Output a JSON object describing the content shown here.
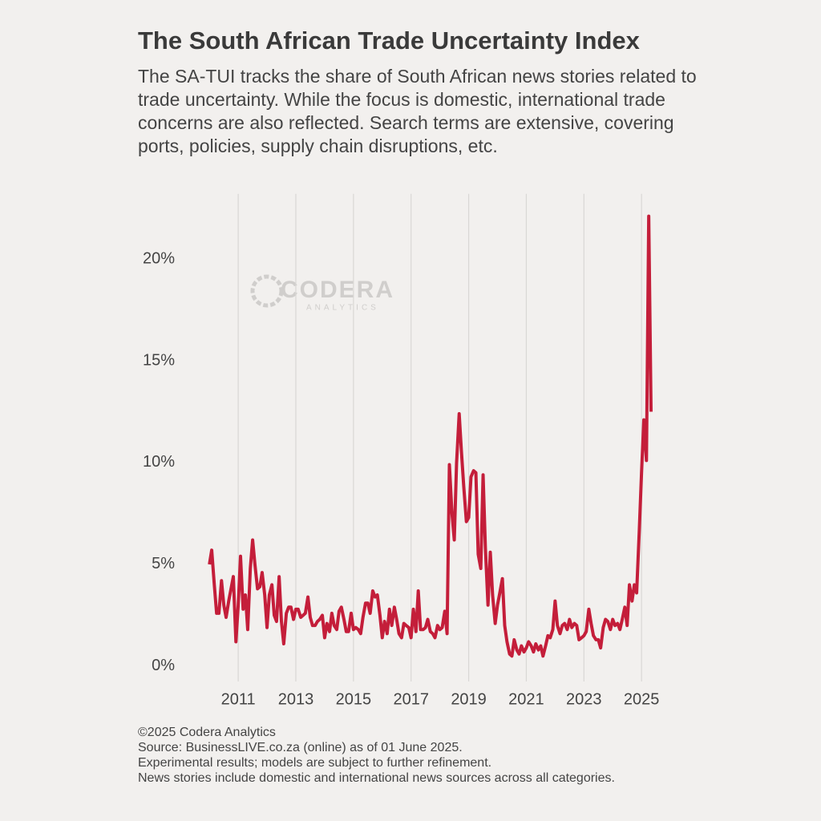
{
  "chart_data": {
    "type": "line",
    "title": "The South African Trade Uncertainty Index",
    "subtitle": [
      "The SA-TUI tracks the share of South African news stories related to",
      "trade uncertainty. While the focus is domestic, international trade",
      "concerns are also reflected. Search terms are extensive, covering",
      "ports, policies, supply chain disruptions, etc."
    ],
    "watermark": {
      "name": "CODERA",
      "sub": "ANALYTICS"
    },
    "footer": [
      "©2025 Codera Analytics",
      "Source: BusinessLIVE.co.za (online) as of 01 June 2025.",
      "Experimental results; models are subject to further refinement.",
      "News stories include domestic and international news sources across all categories."
    ],
    "x": [
      2010.0,
      2010.08,
      2010.17,
      2010.25,
      2010.33,
      2010.42,
      2010.5,
      2010.58,
      2010.67,
      2010.75,
      2010.83,
      2010.92,
      2011.0,
      2011.08,
      2011.17,
      2011.25,
      2011.33,
      2011.42,
      2011.5,
      2011.58,
      2011.67,
      2011.75,
      2011.83,
      2011.92,
      2012.0,
      2012.08,
      2012.17,
      2012.25,
      2012.33,
      2012.42,
      2012.5,
      2012.58,
      2012.67,
      2012.75,
      2012.83,
      2012.92,
      2013.0,
      2013.08,
      2013.17,
      2013.25,
      2013.33,
      2013.42,
      2013.5,
      2013.58,
      2013.67,
      2013.75,
      2013.83,
      2013.92,
      2014.0,
      2014.08,
      2014.17,
      2014.25,
      2014.33,
      2014.42,
      2014.5,
      2014.58,
      2014.67,
      2014.75,
      2014.83,
      2014.92,
      2015.0,
      2015.08,
      2015.17,
      2015.25,
      2015.33,
      2015.42,
      2015.5,
      2015.58,
      2015.67,
      2015.75,
      2015.83,
      2015.92,
      2016.0,
      2016.08,
      2016.17,
      2016.25,
      2016.33,
      2016.42,
      2016.5,
      2016.58,
      2016.67,
      2016.75,
      2016.83,
      2016.92,
      2017.0,
      2017.08,
      2017.17,
      2017.25,
      2017.33,
      2017.42,
      2017.5,
      2017.58,
      2017.67,
      2017.75,
      2017.83,
      2017.92,
      2018.0,
      2018.08,
      2018.17,
      2018.25,
      2018.33,
      2018.42,
      2018.5,
      2018.58,
      2018.67,
      2018.75,
      2018.83,
      2018.92,
      2019.0,
      2019.08,
      2019.17,
      2019.25,
      2019.33,
      2019.42,
      2019.5,
      2019.58,
      2019.67,
      2019.75,
      2019.83,
      2019.92,
      2020.0,
      2020.08,
      2020.17,
      2020.25,
      2020.33,
      2020.42,
      2020.5,
      2020.58,
      2020.67,
      2020.75,
      2020.83,
      2020.92,
      2021.0,
      2021.08,
      2021.17,
      2021.25,
      2021.33,
      2021.42,
      2021.5,
      2021.58,
      2021.67,
      2021.75,
      2021.83,
      2021.92,
      2022.0,
      2022.08,
      2022.17,
      2022.25,
      2022.33,
      2022.42,
      2022.5,
      2022.58,
      2022.67,
      2022.75,
      2022.83,
      2022.92,
      2023.0,
      2023.08,
      2023.17,
      2023.25,
      2023.33,
      2023.42,
      2023.5,
      2023.58,
      2023.67,
      2023.75,
      2023.83,
      2023.92,
      2024.0,
      2024.08,
      2024.17,
      2024.25,
      2024.33,
      2024.42,
      2024.5,
      2024.58,
      2024.67,
      2024.75,
      2024.83,
      2024.92,
      2025.0,
      2025.08,
      2025.17,
      2025.25,
      2025.33
    ],
    "series": [
      {
        "name": "SA-TUI",
        "color": "#c41e3a",
        "values": [
          5.0,
          5.7,
          4.0,
          2.6,
          2.6,
          4.2,
          3.0,
          2.4,
          3.2,
          3.8,
          4.4,
          1.2,
          3.0,
          5.4,
          2.8,
          3.5,
          1.8,
          4.8,
          6.2,
          5.0,
          3.8,
          3.9,
          4.6,
          3.5,
          1.9,
          3.5,
          4.0,
          2.5,
          2.2,
          4.4,
          2.2,
          1.1,
          2.6,
          2.9,
          2.9,
          2.3,
          2.8,
          2.8,
          2.4,
          2.5,
          2.6,
          3.4,
          2.4,
          2.0,
          2.0,
          2.2,
          2.3,
          2.5,
          1.4,
          2.1,
          1.7,
          2.6,
          2.0,
          1.8,
          2.7,
          2.9,
          2.3,
          1.7,
          1.7,
          2.6,
          1.8,
          1.9,
          1.8,
          1.6,
          2.4,
          3.1,
          3.1,
          2.6,
          3.7,
          3.4,
          3.5,
          2.5,
          1.4,
          2.2,
          1.6,
          2.8,
          2.0,
          2.9,
          2.3,
          1.6,
          1.4,
          2.1,
          2.0,
          1.9,
          1.4,
          2.8,
          1.7,
          3.7,
          1.8,
          1.8,
          1.9,
          2.3,
          1.7,
          1.6,
          1.4,
          2.0,
          1.8,
          1.9,
          2.7,
          1.6,
          9.9,
          7.5,
          6.2,
          10.0,
          12.4,
          10.5,
          8.8,
          7.1,
          7.3,
          9.3,
          9.6,
          9.5,
          5.5,
          4.8,
          9.4,
          5.8,
          3.0,
          5.6,
          3.5,
          2.1,
          3.0,
          3.6,
          4.3,
          2.0,
          1.2,
          0.6,
          0.5,
          1.3,
          0.8,
          0.6,
          1.0,
          0.7,
          0.9,
          1.2,
          1.0,
          0.7,
          1.1,
          0.8,
          1.0,
          0.5,
          1.0,
          1.5,
          1.4,
          1.8,
          3.2,
          2.0,
          1.6,
          2.0,
          2.1,
          1.8,
          2.3,
          1.9,
          2.1,
          2.0,
          1.3,
          1.4,
          1.5,
          1.7,
          2.8,
          2.1,
          1.5,
          1.3,
          1.3,
          0.9,
          1.9,
          2.3,
          2.2,
          1.8,
          2.3,
          2.0,
          2.1,
          1.8,
          2.3,
          2.9,
          2.0,
          4.0,
          3.2,
          4.0,
          3.6,
          6.6,
          9.5,
          12.1,
          10.1,
          22.1,
          12.5
        ]
      }
    ],
    "xlim": [
      2009.8,
      2025.9
    ],
    "xticks": [
      2011,
      2013,
      2015,
      2017,
      2019,
      2021,
      2023,
      2025
    ],
    "ylim": [
      -0.75,
      23.2
    ],
    "yticks": [
      {
        "value": 0,
        "label": "0%"
      },
      {
        "value": 5,
        "label": "5%"
      },
      {
        "value": 10,
        "label": "10%"
      },
      {
        "value": 15,
        "label": "15%"
      },
      {
        "value": 20,
        "label": "20%"
      }
    ],
    "grid": true
  }
}
